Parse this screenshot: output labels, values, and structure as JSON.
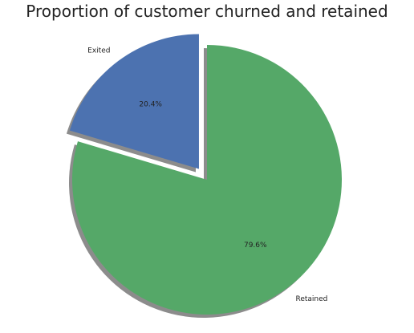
{
  "chart_data": {
    "type": "pie",
    "title": "Proportion of customer churned and retained",
    "categories": [
      "Exited",
      "Retained"
    ],
    "values": [
      20.4,
      79.6
    ],
    "percent_labels": [
      "20.4%",
      "79.6%"
    ],
    "colors": [
      "#4c72b0",
      "#55a868"
    ],
    "explode": [
      0.1,
      0
    ],
    "shadow": true
  }
}
